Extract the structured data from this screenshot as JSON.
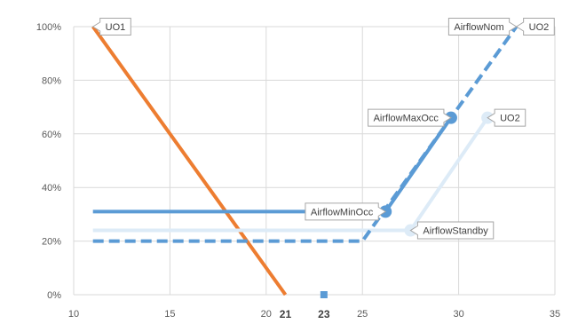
{
  "chart_data": {
    "type": "line",
    "title": "",
    "xlabel": "",
    "ylabel": "",
    "xlim": [
      10,
      35
    ],
    "ylim": [
      0,
      100
    ],
    "x_ticks": [
      10,
      15,
      20,
      25,
      30,
      35
    ],
    "y_ticks": [
      0,
      20,
      40,
      60,
      80,
      100
    ],
    "y_tick_labels": [
      "0%",
      "20%",
      "40%",
      "60%",
      "80%",
      "100%"
    ],
    "grid": true,
    "legend": "none",
    "highlighted_x_ticks": [
      {
        "x": 21,
        "label": "21"
      },
      {
        "x": 23,
        "label": "23"
      }
    ],
    "series": [
      {
        "key": "uo1",
        "color": "#ED7D31",
        "style": "solid",
        "x": [
          11,
          21
        ],
        "y": [
          100,
          0
        ]
      },
      {
        "key": "minocc",
        "color": "#5B9BD5",
        "style": "solid",
        "x": [
          11,
          26.2,
          29.6
        ],
        "y": [
          31,
          31,
          66
        ]
      },
      {
        "key": "standby",
        "color": "#DDEBF7",
        "style": "solid",
        "x": [
          11,
          27.5,
          31.5
        ],
        "y": [
          24,
          24,
          66
        ]
      },
      {
        "key": "dashed",
        "color": "#5B9BD5",
        "style": "dashed",
        "x": [
          11,
          25,
          33
        ],
        "y": [
          20,
          20,
          100
        ]
      }
    ],
    "markers": [
      {
        "x": 26.2,
        "y": 31,
        "color": "#5B9BD5",
        "shape": "circle"
      },
      {
        "x": 29.6,
        "y": 66,
        "color": "#5B9BD5",
        "shape": "circle"
      },
      {
        "x": 27.5,
        "y": 24,
        "color": "#DDEBF7",
        "shape": "circle"
      },
      {
        "x": 31.5,
        "y": 66,
        "color": "#DDEBF7",
        "shape": "circle"
      },
      {
        "x": 23,
        "y": 0,
        "color": "#5B9BD5",
        "shape": "square"
      }
    ],
    "annotations": [
      {
        "label": "UO1",
        "x": 11,
        "y": 100,
        "side": "right"
      },
      {
        "label": "AirflowNom",
        "x": 33,
        "y": 100,
        "side": "left"
      },
      {
        "label": "UO2",
        "x": 33,
        "y": 100,
        "side": "right"
      },
      {
        "label": "AirflowMaxOcc",
        "x": 29.6,
        "y": 66,
        "side": "left"
      },
      {
        "label": "UO2",
        "x": 31.5,
        "y": 66,
        "side": "right"
      },
      {
        "label": "AirflowMinOcc",
        "x": 26.2,
        "y": 31,
        "side": "left"
      },
      {
        "label": "AirflowStandby",
        "x": 27.5,
        "y": 24,
        "side": "right"
      }
    ]
  }
}
